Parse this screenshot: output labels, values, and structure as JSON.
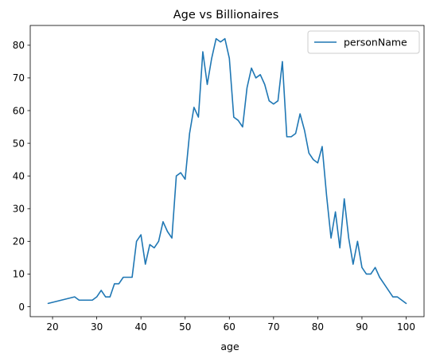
{
  "chart_data": {
    "type": "line",
    "title": "Age vs Billionaires",
    "xlabel": "age",
    "ylabel": "",
    "xlim": [
      14.95,
      104.05
    ],
    "ylim": [
      -3.05,
      86.05
    ],
    "xticks": [
      20,
      30,
      40,
      50,
      60,
      70,
      80,
      90,
      100
    ],
    "yticks": [
      0,
      10,
      20,
      30,
      40,
      50,
      60,
      70,
      80
    ],
    "grid": false,
    "legend_position": "top-right",
    "series": [
      {
        "name": "personName",
        "color": "#1f77b4",
        "x": [
          19,
          25,
          26,
          27,
          28,
          29,
          30,
          31,
          32,
          33,
          34,
          35,
          36,
          37,
          38,
          39,
          40,
          41,
          42,
          43,
          44,
          45,
          46,
          47,
          48,
          49,
          50,
          51,
          52,
          53,
          54,
          55,
          56,
          57,
          58,
          59,
          60,
          61,
          62,
          63,
          64,
          65,
          66,
          67,
          68,
          69,
          70,
          71,
          72,
          73,
          74,
          75,
          76,
          77,
          78,
          79,
          80,
          81,
          82,
          83,
          84,
          85,
          86,
          87,
          88,
          89,
          90,
          91,
          92,
          93,
          94,
          95,
          96,
          97,
          98,
          99,
          100
        ],
        "y": [
          1,
          3,
          2,
          2,
          2,
          2,
          3,
          5,
          3,
          3,
          7,
          7,
          9,
          9,
          9,
          20,
          22,
          13,
          19,
          18,
          20,
          26,
          23,
          21,
          40,
          41,
          39,
          53,
          61,
          58,
          78,
          68,
          76,
          82,
          81,
          82,
          76,
          58,
          57,
          55,
          67,
          73,
          70,
          71,
          68,
          63,
          62,
          63,
          75,
          52,
          52,
          53,
          59,
          54,
          47,
          45,
          44,
          49,
          34,
          21,
          29,
          18,
          33,
          21,
          13,
          20,
          12,
          10,
          10,
          12,
          9,
          7,
          5,
          3,
          3,
          2,
          1
        ]
      }
    ]
  }
}
